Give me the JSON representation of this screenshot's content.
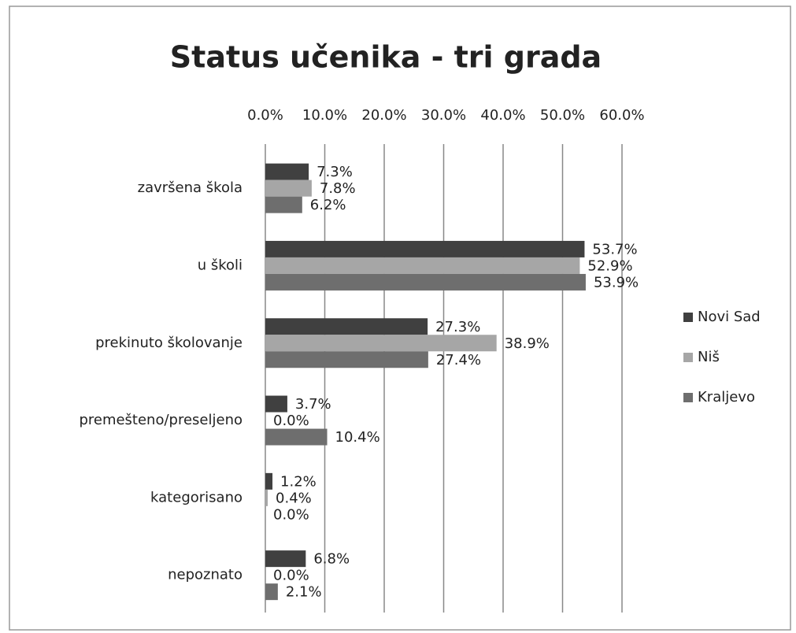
{
  "chart_data": {
    "type": "hbar",
    "title": "Status učenika - tri grada",
    "categories": [
      "završena škola",
      "u školi",
      "prekinuto školovanje",
      "premešteno/preseljeno",
      "kategorisano",
      "nepoznato"
    ],
    "series": [
      {
        "name": "Novi Sad",
        "color": "#404040",
        "values": [
          7.3,
          53.7,
          27.3,
          3.7,
          1.2,
          6.8
        ],
        "value_labels": [
          "7.3%",
          "53.7%",
          "27.3%",
          "3.7%",
          "1.2%",
          "6.8%"
        ]
      },
      {
        "name": "Niš",
        "color": "#a6a6a6",
        "values": [
          7.8,
          52.9,
          38.9,
          0.0,
          0.4,
          0.0
        ],
        "value_labels": [
          "7.8%",
          "52.9%",
          "38.9%",
          "0.0%",
          "0.4%",
          "0.0%"
        ]
      },
      {
        "name": "Kraljevo",
        "color": "#6e6e6e",
        "values": [
          6.2,
          53.9,
          27.4,
          10.4,
          0.0,
          2.1
        ],
        "value_labels": [
          "6.2%",
          "53.9%",
          "27.4%",
          "10.4%",
          "0.0%",
          "2.1%"
        ]
      }
    ],
    "xlim": [
      0,
      60
    ],
    "xticks": [
      {
        "value": 0,
        "label": "0.0%"
      },
      {
        "value": 10,
        "label": "10.0%"
      },
      {
        "value": 20,
        "label": "20.0%"
      },
      {
        "value": 30,
        "label": "30.0%"
      },
      {
        "value": 40,
        "label": "40.0%"
      },
      {
        "value": 50,
        "label": "50.0%"
      },
      {
        "value": 60,
        "label": "60.0%"
      }
    ],
    "grid": true,
    "legend": "right"
  }
}
